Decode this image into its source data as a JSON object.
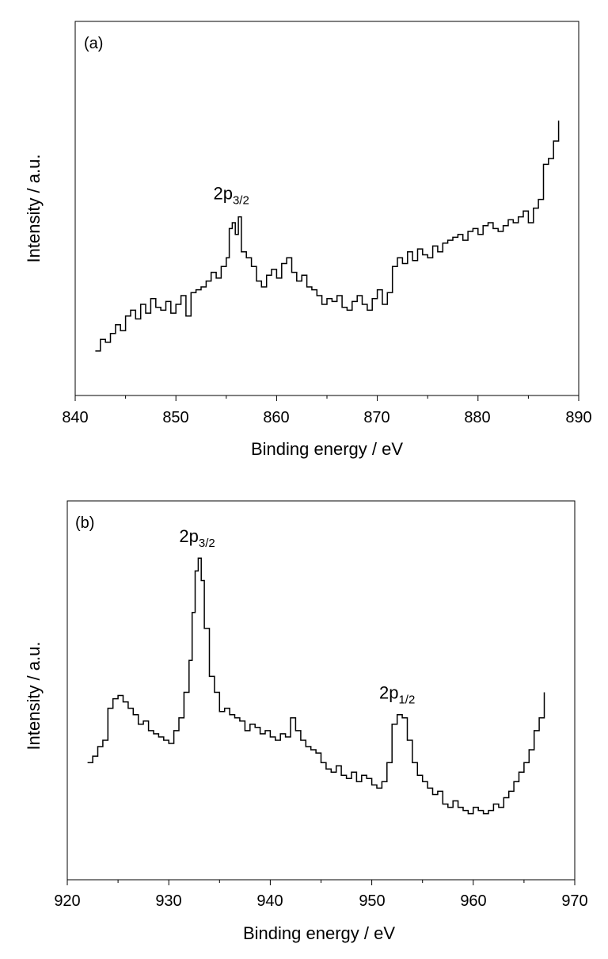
{
  "chart_data": [
    {
      "type": "line",
      "panel_label": "(a)",
      "xlabel": "Binding energy / eV",
      "ylabel": "Intensity / a.u.",
      "xlim": [
        840,
        890
      ],
      "ylim": [
        0,
        100
      ],
      "y_ticks_shown": false,
      "x_ticks": [
        "840",
        "850",
        "860",
        "870",
        "880",
        "890"
      ],
      "grid": false,
      "series": [
        {
          "x": [
            842,
            842.5,
            843,
            843.5,
            844,
            844.5,
            845,
            845.5,
            846,
            846.5,
            847,
            847.5,
            848,
            848.5,
            849,
            849.5,
            850,
            850.5,
            851,
            851.5,
            852,
            852.5,
            853,
            853.5,
            854,
            854.5,
            855,
            855.3,
            855.6,
            855.9,
            856.2,
            856.5,
            857,
            857.5,
            858,
            858.5,
            859,
            859.5,
            860,
            860.5,
            861,
            861.5,
            862,
            862.5,
            863,
            863.5,
            864,
            864.5,
            865,
            865.5,
            866,
            866.5,
            867,
            867.5,
            868,
            868.5,
            869,
            869.5,
            870,
            870.5,
            871,
            871.5,
            872,
            872.5,
            873,
            873.5,
            874,
            874.5,
            875,
            875.5,
            876,
            876.5,
            877,
            877.5,
            878,
            878.5,
            879,
            879.5,
            880,
            880.5,
            881,
            881.5,
            882,
            882.5,
            883,
            883.5,
            884,
            884.5,
            885,
            885.5,
            886,
            886.5,
            887,
            887.5,
            888
          ],
          "y": [
            6,
            10,
            9,
            12,
            15,
            13,
            18,
            20,
            17,
            22,
            19,
            24,
            21,
            20,
            23,
            19,
            22,
            25,
            18,
            26,
            27,
            28,
            30,
            33,
            31,
            35,
            38,
            48,
            50,
            46,
            52,
            40,
            38,
            35,
            30,
            28,
            32,
            34,
            31,
            36,
            38,
            33,
            30,
            32,
            28,
            27,
            25,
            22,
            24,
            23,
            25,
            21,
            20,
            23,
            25,
            22,
            20,
            24,
            27,
            22,
            26,
            35,
            38,
            36,
            40,
            37,
            41,
            39,
            38,
            42,
            40,
            43,
            44,
            45,
            46,
            44,
            47,
            48,
            46,
            49,
            50,
            48,
            47,
            49,
            51,
            50,
            52,
            54,
            50,
            55,
            58,
            70,
            72,
            78,
            85
          ]
        }
      ]
    },
    {
      "type": "line",
      "panel_label": "(b)",
      "xlabel": "Binding energy / eV",
      "ylabel": "Intensity / a.u.",
      "xlim": [
        920,
        970
      ],
      "ylim": [
        0,
        100
      ],
      "y_ticks_shown": false,
      "x_ticks": [
        "920",
        "930",
        "940",
        "950",
        "960",
        "970"
      ],
      "grid": false,
      "series": [
        {
          "x": [
            922,
            922.5,
            923,
            923.5,
            924,
            924.5,
            925,
            925.5,
            926,
            926.5,
            927,
            927.5,
            928,
            928.5,
            929,
            929.5,
            930,
            930.5,
            931,
            931.5,
            932,
            932.3,
            932.6,
            932.9,
            933.2,
            933.5,
            934,
            934.5,
            935,
            935.5,
            936,
            936.5,
            937,
            937.5,
            938,
            938.5,
            939,
            939.5,
            940,
            940.5,
            941,
            941.5,
            942,
            942.5,
            943,
            943.5,
            944,
            944.5,
            945,
            945.5,
            946,
            946.5,
            947,
            947.5,
            948,
            948.5,
            949,
            949.5,
            950,
            950.5,
            951,
            951.5,
            952,
            952.5,
            953,
            953.5,
            954,
            954.5,
            955,
            955.5,
            956,
            956.5,
            957,
            957.5,
            958,
            958.5,
            959,
            959.5,
            960,
            960.5,
            961,
            961.5,
            962,
            962.5,
            963,
            963.5,
            964,
            964.5,
            965,
            965.5,
            966,
            966.5,
            967
          ],
          "y": [
            28,
            30,
            33,
            35,
            45,
            48,
            49,
            47,
            45,
            43,
            40,
            41,
            38,
            37,
            36,
            35,
            34,
            38,
            42,
            50,
            60,
            75,
            88,
            92,
            85,
            70,
            55,
            50,
            44,
            45,
            43,
            42,
            41,
            38,
            40,
            39,
            37,
            38,
            36,
            35,
            37,
            36,
            42,
            38,
            35,
            33,
            32,
            31,
            28,
            26,
            25,
            27,
            24,
            23,
            25,
            22,
            24,
            23,
            21,
            20,
            22,
            28,
            40,
            43,
            42,
            35,
            28,
            24,
            22,
            20,
            18,
            19,
            15,
            14,
            16,
            14,
            13,
            12,
            14,
            13,
            12,
            13,
            15,
            14,
            17,
            19,
            22,
            25,
            28,
            32,
            38,
            42,
            50
          ]
        }
      ]
    }
  ],
  "annotations": {
    "a_peak1": {
      "main": "2p",
      "sub": "3/2",
      "x": 855.5,
      "y": 58
    },
    "b_peak1": {
      "main": "2p",
      "sub": "3/2",
      "x": 932.8,
      "y": 97
    },
    "b_peak2": {
      "main": "2p",
      "sub": "1/2",
      "x": 952.5,
      "y": 48
    }
  }
}
